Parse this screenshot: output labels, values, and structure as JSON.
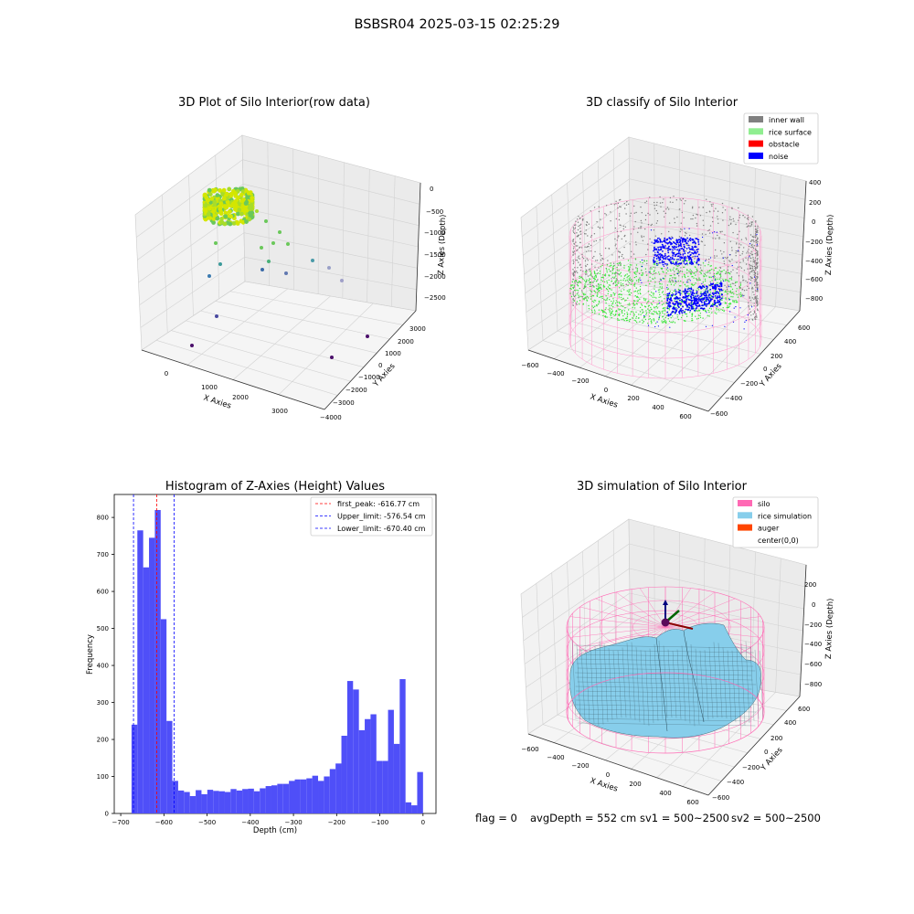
{
  "suptitle": "BSBSR04 2025-03-15 02:25:29",
  "status_bar": {
    "flag": "flag = 0",
    "avg_depth": "avgDepth = 552 cm",
    "sv1": "sv1 = 500~2500",
    "sv2": "sv2 = 500~2500"
  },
  "chart_data": [
    {
      "type": "scatter",
      "title": "3D Plot of Silo Interior(row data)",
      "xlabel": "X Axies",
      "ylabel": "Y Axies",
      "zlabel": "Z Axies (Depth)",
      "x_ticks": [
        "0",
        "1000",
        "2000",
        "3000"
      ],
      "y_ticks": [
        "3000",
        "2000",
        "1000",
        "0",
        "−1000",
        "−2000",
        "−3000",
        "−4000"
      ],
      "z_ticks": [
        "0",
        "−500",
        "−1000",
        "−1500",
        "−2000",
        "−2500"
      ],
      "colors": {
        "high": "#d4e600",
        "mid": "#6ac85a",
        "low": "#3b5ba8",
        "deep": "#4b0f6b"
      }
    },
    {
      "type": "scatter",
      "title": "3D classify of Silo Interior",
      "xlabel": "X Axies",
      "ylabel": "Y Axies",
      "zlabel": "Z Axies (Depth)",
      "x_ticks": [
        "−600",
        "−400",
        "−200",
        "0",
        "200",
        "400",
        "600"
      ],
      "y_ticks": [
        "600",
        "400",
        "200",
        "0",
        "−200",
        "−400",
        "−600"
      ],
      "z_ticks": [
        "400",
        "200",
        "0",
        "−200",
        "−400",
        "−600",
        "−800"
      ],
      "legend": [
        {
          "label": "inner wall",
          "color": "#808080"
        },
        {
          "label": "rice surface",
          "color": "#90ee90"
        },
        {
          "label": "obstacle",
          "color": "#ff0000"
        },
        {
          "label": "noise",
          "color": "#0000ff"
        }
      ],
      "cylinder_color": "#ff99cc"
    },
    {
      "type": "bar",
      "title": "Histogram of Z-Axies (Height) Values",
      "xlabel": "Depth (cm)",
      "ylabel": "Frequency",
      "bin_width": 13.5,
      "bins_start": -675,
      "values": [
        240,
        765,
        665,
        745,
        820,
        525,
        250,
        88,
        62,
        58,
        47,
        63,
        52,
        64,
        61,
        60,
        58,
        66,
        62,
        66,
        67,
        60,
        68,
        74,
        76,
        80,
        80,
        88,
        92,
        92,
        95,
        102,
        88,
        100,
        120,
        135,
        210,
        358,
        335,
        225,
        255,
        268,
        142,
        142,
        280,
        188,
        363,
        30,
        22,
        112
      ],
      "x_ticks": [
        "−700",
        "−600",
        "−500",
        "−400",
        "−300",
        "−200",
        "−100",
        "0"
      ],
      "x_tick_values": [
        -700,
        -600,
        -500,
        -400,
        -300,
        -200,
        -100,
        0
      ],
      "y_ticks": [
        "0",
        "100",
        "200",
        "300",
        "400",
        "500",
        "600",
        "700",
        "800"
      ],
      "y_tick_values": [
        0,
        100,
        200,
        300,
        400,
        500,
        600,
        700,
        800
      ],
      "xlim": [
        -715,
        30
      ],
      "ylim": [
        0,
        862
      ],
      "bar_color": "#4f4ff8",
      "vlines": [
        {
          "label": "first_peak: -616.77 cm",
          "x": -616.77,
          "color": "#ff0000"
        },
        {
          "label": "Upper_limit: -576.54 cm",
          "x": -576.54,
          "color": "#0000ff"
        },
        {
          "label": "Lower_limit: -670.40 cm",
          "x": -670.4,
          "color": "#0000ff"
        }
      ]
    },
    {
      "type": "surface",
      "title": "3D simulation of Silo Interior",
      "xlabel": "X Axies",
      "ylabel": "Y Axies",
      "zlabel": "Z Axies (Depth)",
      "x_ticks": [
        "−600",
        "−400",
        "−200",
        "0",
        "200",
        "400",
        "600"
      ],
      "y_ticks": [
        "600",
        "400",
        "200",
        "0",
        "−200",
        "−400",
        "−600"
      ],
      "z_ticks": [
        "200",
        "0",
        "−200",
        "−400",
        "−600",
        "−800"
      ],
      "legend": [
        {
          "label": "silo",
          "color": "#ff69b4"
        },
        {
          "label": "rice simulation",
          "color": "#87ceeb"
        },
        {
          "label": "auger",
          "color": "#ff4500"
        },
        {
          "label": "center(0,0)",
          "color": ""
        }
      ],
      "surface_color": "#87ceeb",
      "cylinder_color": "#ff69b4"
    }
  ]
}
